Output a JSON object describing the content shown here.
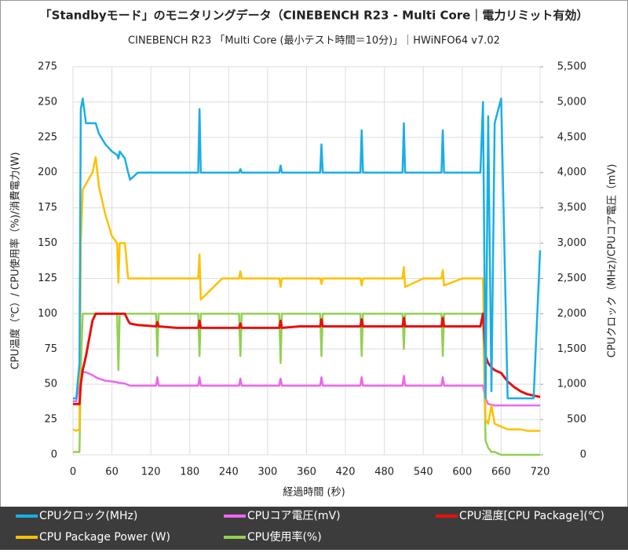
{
  "chart_data": {
    "type": "line",
    "title": "「Standbyモード」のモニタリングデータ（CINEBENCH R23 - Multi Core｜電力リミット有効）",
    "subtitle": "CINEBENCH R23 「Multi Core (最小テスト時間＝10分)」｜HWiNFO64 v7.02",
    "xlabel": "経過時間 (秒)",
    "ylabel": "CPU温度（℃）/ CPU使用率（%)/消費電力(W)",
    "y2label": "CPUクロック（MHz)/CPUコア電圧（mV)",
    "grid": true,
    "xlim": [
      0,
      720
    ],
    "xticks": [
      0,
      60,
      120,
      180,
      240,
      300,
      360,
      420,
      480,
      540,
      600,
      660,
      720
    ],
    "ylim": [
      0,
      275
    ],
    "yticks": [
      0,
      25,
      50,
      75,
      100,
      125,
      150,
      175,
      200,
      225,
      250,
      275
    ],
    "y2lim": [
      0,
      5500
    ],
    "y2ticks": [
      0,
      500,
      {
        "value": 1000,
        "label": "1,000"
      },
      {
        "value": 1500,
        "label": "1,500"
      },
      {
        "value": 2000,
        "label": "2,000"
      },
      {
        "value": 2500,
        "label": "2,500"
      },
      {
        "value": 3000,
        "label": "3,000"
      },
      {
        "value": 3500,
        "label": "3,500"
      },
      {
        "value": 4000,
        "label": "4,000"
      },
      {
        "value": 4500,
        "label": "4,500"
      },
      {
        "value": 5000,
        "label": "5,000"
      },
      {
        "value": 5500,
        "label": "5,500"
      }
    ],
    "x": [
      0,
      5,
      10,
      12,
      15,
      20,
      30,
      35,
      40,
      50,
      60,
      68,
      70,
      72,
      80,
      85,
      88,
      100,
      128,
      130,
      132,
      160,
      193,
      195,
      197,
      230,
      256,
      258,
      260,
      290,
      318,
      320,
      322,
      350,
      381,
      383,
      385,
      410,
      443,
      445,
      447,
      480,
      508,
      510,
      512,
      540,
      568,
      570,
      572,
      600,
      628,
      632,
      636,
      640,
      645,
      650,
      660,
      670,
      680,
      690,
      700,
      710,
      720
    ],
    "series": [
      {
        "name": "CPUクロック(MHz)",
        "color": "#1aaee6",
        "axis": "y2",
        "values": [
          800,
          800,
          1300,
          4900,
          5050,
          4700,
          4700,
          4700,
          4550,
          4400,
          4300,
          4250,
          4200,
          4300,
          4200,
          4000,
          3900,
          4000,
          4000,
          4000,
          4000,
          4000,
          4000,
          4900,
          4000,
          4000,
          4000,
          4050,
          4000,
          4000,
          4000,
          4100,
          4000,
          4000,
          4000,
          4400,
          4000,
          4000,
          4000,
          4600,
          4000,
          4000,
          4000,
          4700,
          4000,
          4000,
          4000,
          4600,
          4000,
          4000,
          4000,
          5000,
          800,
          4800,
          900,
          4700,
          5050,
          800,
          800,
          800,
          800,
          800,
          2900
        ]
      },
      {
        "name": "CPUコア電圧(mV)",
        "color": "#ee66ee",
        "axis": "y2",
        "values": [
          760,
          760,
          1000,
          1170,
          1170,
          1170,
          1130,
          1100,
          1080,
          1050,
          1040,
          1030,
          1020,
          1020,
          1010,
          990,
          980,
          980,
          980,
          1100,
          980,
          980,
          980,
          1100,
          980,
          980,
          980,
          1080,
          980,
          980,
          980,
          1080,
          980,
          980,
          980,
          1100,
          980,
          980,
          980,
          1100,
          980,
          980,
          980,
          1120,
          980,
          980,
          980,
          1100,
          980,
          980,
          980,
          980,
          800,
          720,
          710,
          700,
          700,
          700,
          700,
          700,
          700,
          700,
          700
        ]
      },
      {
        "name": "CPU温度[CPU Package](℃)",
        "color": "#e81010",
        "values": [
          36,
          36,
          36,
          50,
          60,
          70,
          95,
          100,
          100,
          100,
          100,
          100,
          100,
          100,
          100,
          95,
          93,
          92,
          91,
          94,
          91,
          90,
          90,
          95,
          90,
          90,
          90,
          93,
          90,
          90,
          90,
          95,
          90,
          91,
          91,
          96,
          91,
          91,
          91,
          96,
          91,
          91,
          91,
          97,
          91,
          91,
          91,
          97,
          91,
          91,
          91,
          100,
          70,
          65,
          62,
          60,
          58,
          52,
          48,
          45,
          43,
          42,
          41
        ]
      },
      {
        "name": "CPU Package Power (W)",
        "color": "#ffc000",
        "values": [
          18,
          17,
          18,
          150,
          188,
          192,
          200,
          211,
          190,
          170,
          155,
          150,
          122,
          150,
          150,
          125,
          125,
          125,
          125,
          125,
          125,
          125,
          125,
          142,
          110,
          125,
          125,
          130,
          125,
          125,
          125,
          119,
          125,
          125,
          125,
          121,
          125,
          125,
          125,
          120,
          125,
          125,
          125,
          133,
          119,
          125,
          125,
          131,
          120,
          125,
          125,
          125,
          25,
          22,
          35,
          22,
          20,
          18,
          18,
          18,
          17,
          17,
          17
        ]
      },
      {
        "name": "CPU使用率(%)",
        "color": "#92d050",
        "values": [
          2,
          2,
          2,
          60,
          100,
          100,
          100,
          100,
          100,
          100,
          100,
          100,
          60,
          100,
          100,
          100,
          100,
          100,
          100,
          70,
          100,
          100,
          100,
          70,
          100,
          100,
          100,
          70,
          100,
          100,
          100,
          65,
          100,
          100,
          100,
          70,
          100,
          100,
          100,
          70,
          100,
          100,
          100,
          75,
          100,
          100,
          100,
          70,
          100,
          100,
          100,
          100,
          10,
          5,
          2,
          2,
          0,
          0,
          0,
          0,
          0,
          0,
          0
        ]
      }
    ]
  }
}
